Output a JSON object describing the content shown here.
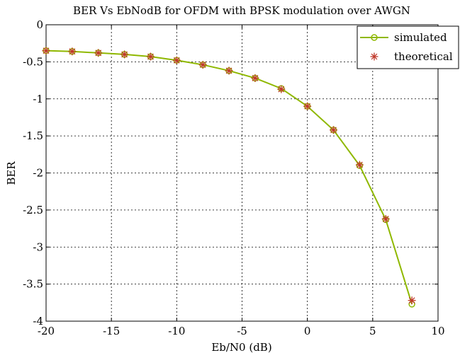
{
  "chart_data": {
    "type": "line",
    "title": "BER Vs EbNodB for OFDM with BPSK modulation over AWGN",
    "xlabel": "Eb/N0 (dB)",
    "ylabel": "BER",
    "xlim": [
      -20,
      10
    ],
    "ylim": [
      -4,
      0
    ],
    "xticks": [
      "-20",
      "-15",
      "-10",
      "-5",
      "0",
      "5",
      "10"
    ],
    "yticks": [
      "0",
      "-0.5",
      "-1",
      "-1.5",
      "-2",
      "-2.5",
      "-3",
      "-3.5",
      "-4"
    ],
    "grid": true,
    "legend_position": "top-right",
    "x": [
      -20,
      -18,
      -16,
      -14,
      -12,
      -10,
      -8,
      -6,
      -4,
      -2,
      0,
      2,
      4,
      6,
      8
    ],
    "series": [
      {
        "name": "simulated",
        "color": "#8fb800",
        "marker": "circle",
        "line": true,
        "values": [
          -0.35,
          -0.36,
          -0.38,
          -0.4,
          -0.43,
          -0.48,
          -0.54,
          -0.62,
          -0.72,
          -0.86,
          -1.1,
          -1.42,
          -1.9,
          -2.63,
          -3.77
        ]
      },
      {
        "name": "theoretical",
        "color": "#c0392b",
        "marker": "asterisk",
        "line": false,
        "values": [
          -0.35,
          -0.36,
          -0.38,
          -0.4,
          -0.43,
          -0.48,
          -0.54,
          -0.62,
          -0.72,
          -0.87,
          -1.1,
          -1.42,
          -1.89,
          -2.62,
          -3.72
        ]
      }
    ]
  }
}
